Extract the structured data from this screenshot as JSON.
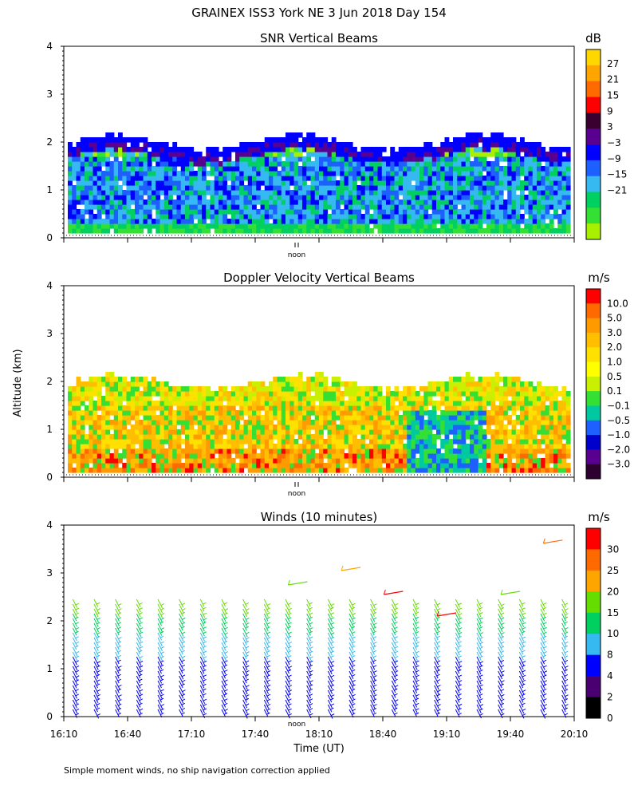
{
  "title": "GRAINEX ISS3 York NE    3 Jun 2018 Day 154",
  "footnote": "Simple moment winds, no ship navigation correction applied",
  "ylabel": "Altitude (km)",
  "xlabel": "Time (UT)",
  "noon_label": "noon",
  "chart_data": [
    {
      "type": "heatmap",
      "title": "SNR Vertical Beams",
      "units": "dB",
      "xlim": [
        "16:10",
        "20:10"
      ],
      "ylim": [
        0,
        4
      ],
      "yticks": [
        "0",
        "1",
        "2",
        "3",
        "4"
      ],
      "noon_marker": "noon",
      "colorbar_labels": [
        "27",
        "21",
        "15",
        "9",
        "3",
        "−3",
        "−9",
        "−15",
        "−21"
      ],
      "colors": [
        "#ffd700",
        "#ffa500",
        "#ff6a00",
        "#ff0000",
        "#3a0030",
        "#5a0090",
        "#0000ff",
        "#1e5fff",
        "#35b9f0",
        "#00d060",
        "#33e033",
        "#a8f000"
      ],
      "palette_note": "low-to-high: yellow-green, green, sky, blue, navy, purple, maroon, red, orange, yellow"
    },
    {
      "type": "heatmap",
      "title": "Doppler Velocity Vertical Beams",
      "units": "m/s",
      "xlim": [
        "16:10",
        "20:10"
      ],
      "ylim": [
        0,
        4
      ],
      "yticks": [
        "0",
        "1",
        "2",
        "3",
        "4"
      ],
      "noon_marker": "noon",
      "colorbar_labels": [
        "10.0",
        "5.0",
        "3.0",
        "2.0",
        "1.0",
        "0.5",
        "0.1",
        "−0.1",
        "−0.5",
        "−1.0",
        "−2.0",
        "−3.0"
      ],
      "colors": [
        "#ff0000",
        "#ff6a00",
        "#ff9a00",
        "#ffbf00",
        "#ffe100",
        "#ffff00",
        "#c8f000",
        "#33e033",
        "#00c8a0",
        "#1e5fff",
        "#0000cc",
        "#5a0090",
        "#2d0030"
      ]
    },
    {
      "type": "barbs",
      "title": "Winds (10 minutes)",
      "units": "m/s",
      "xlim": [
        "16:10",
        "20:10"
      ],
      "xticks": [
        "16:10",
        "16:40",
        "17:10",
        "17:40",
        "18:10",
        "18:40",
        "19:10",
        "19:40",
        "20:10"
      ],
      "ylim": [
        0,
        4
      ],
      "yticks": [
        "0",
        "1",
        "2",
        "3",
        "4"
      ],
      "colorbar_labels": [
        "30",
        "25",
        "20",
        "15",
        "10",
        "8",
        "4",
        "2",
        "0"
      ],
      "colors": [
        "#ff0000",
        "#ff6a00",
        "#ffa500",
        "#66dd00",
        "#00d060",
        "#35b9f0",
        "#0000ff",
        "#4a0070",
        "#000000"
      ]
    }
  ]
}
